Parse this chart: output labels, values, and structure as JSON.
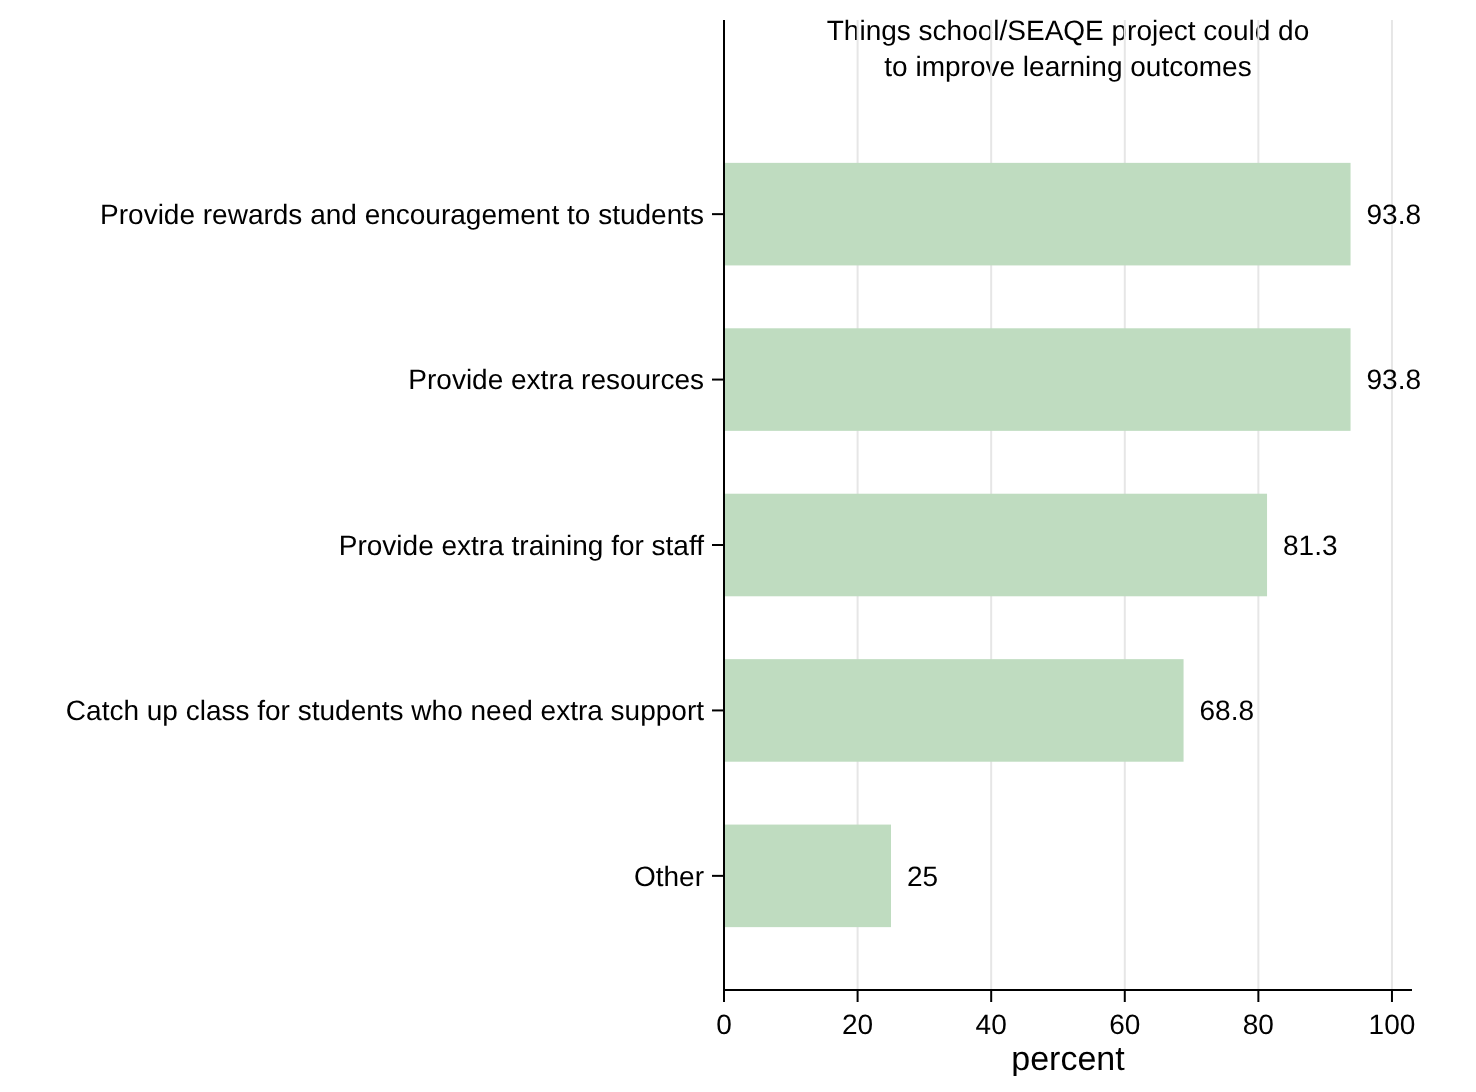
{
  "chart_data": {
    "type": "bar",
    "orientation": "horizontal",
    "title": "Things school/SEAQE project could do\nto improve learning outcomes",
    "xlabel": "percent",
    "categories": [
      "Provide rewards and encouragement to students",
      "Provide extra resources",
      "Provide extra training for staff",
      "Catch up class for students who need extra support",
      "Other"
    ],
    "values": [
      93.8,
      93.8,
      81.3,
      68.8,
      25
    ],
    "color": "#bfdcc0",
    "data_labels": true,
    "xlim": [
      0,
      103
    ],
    "xticks": [
      0,
      20,
      40,
      60,
      80,
      100
    ],
    "grid": "x"
  }
}
